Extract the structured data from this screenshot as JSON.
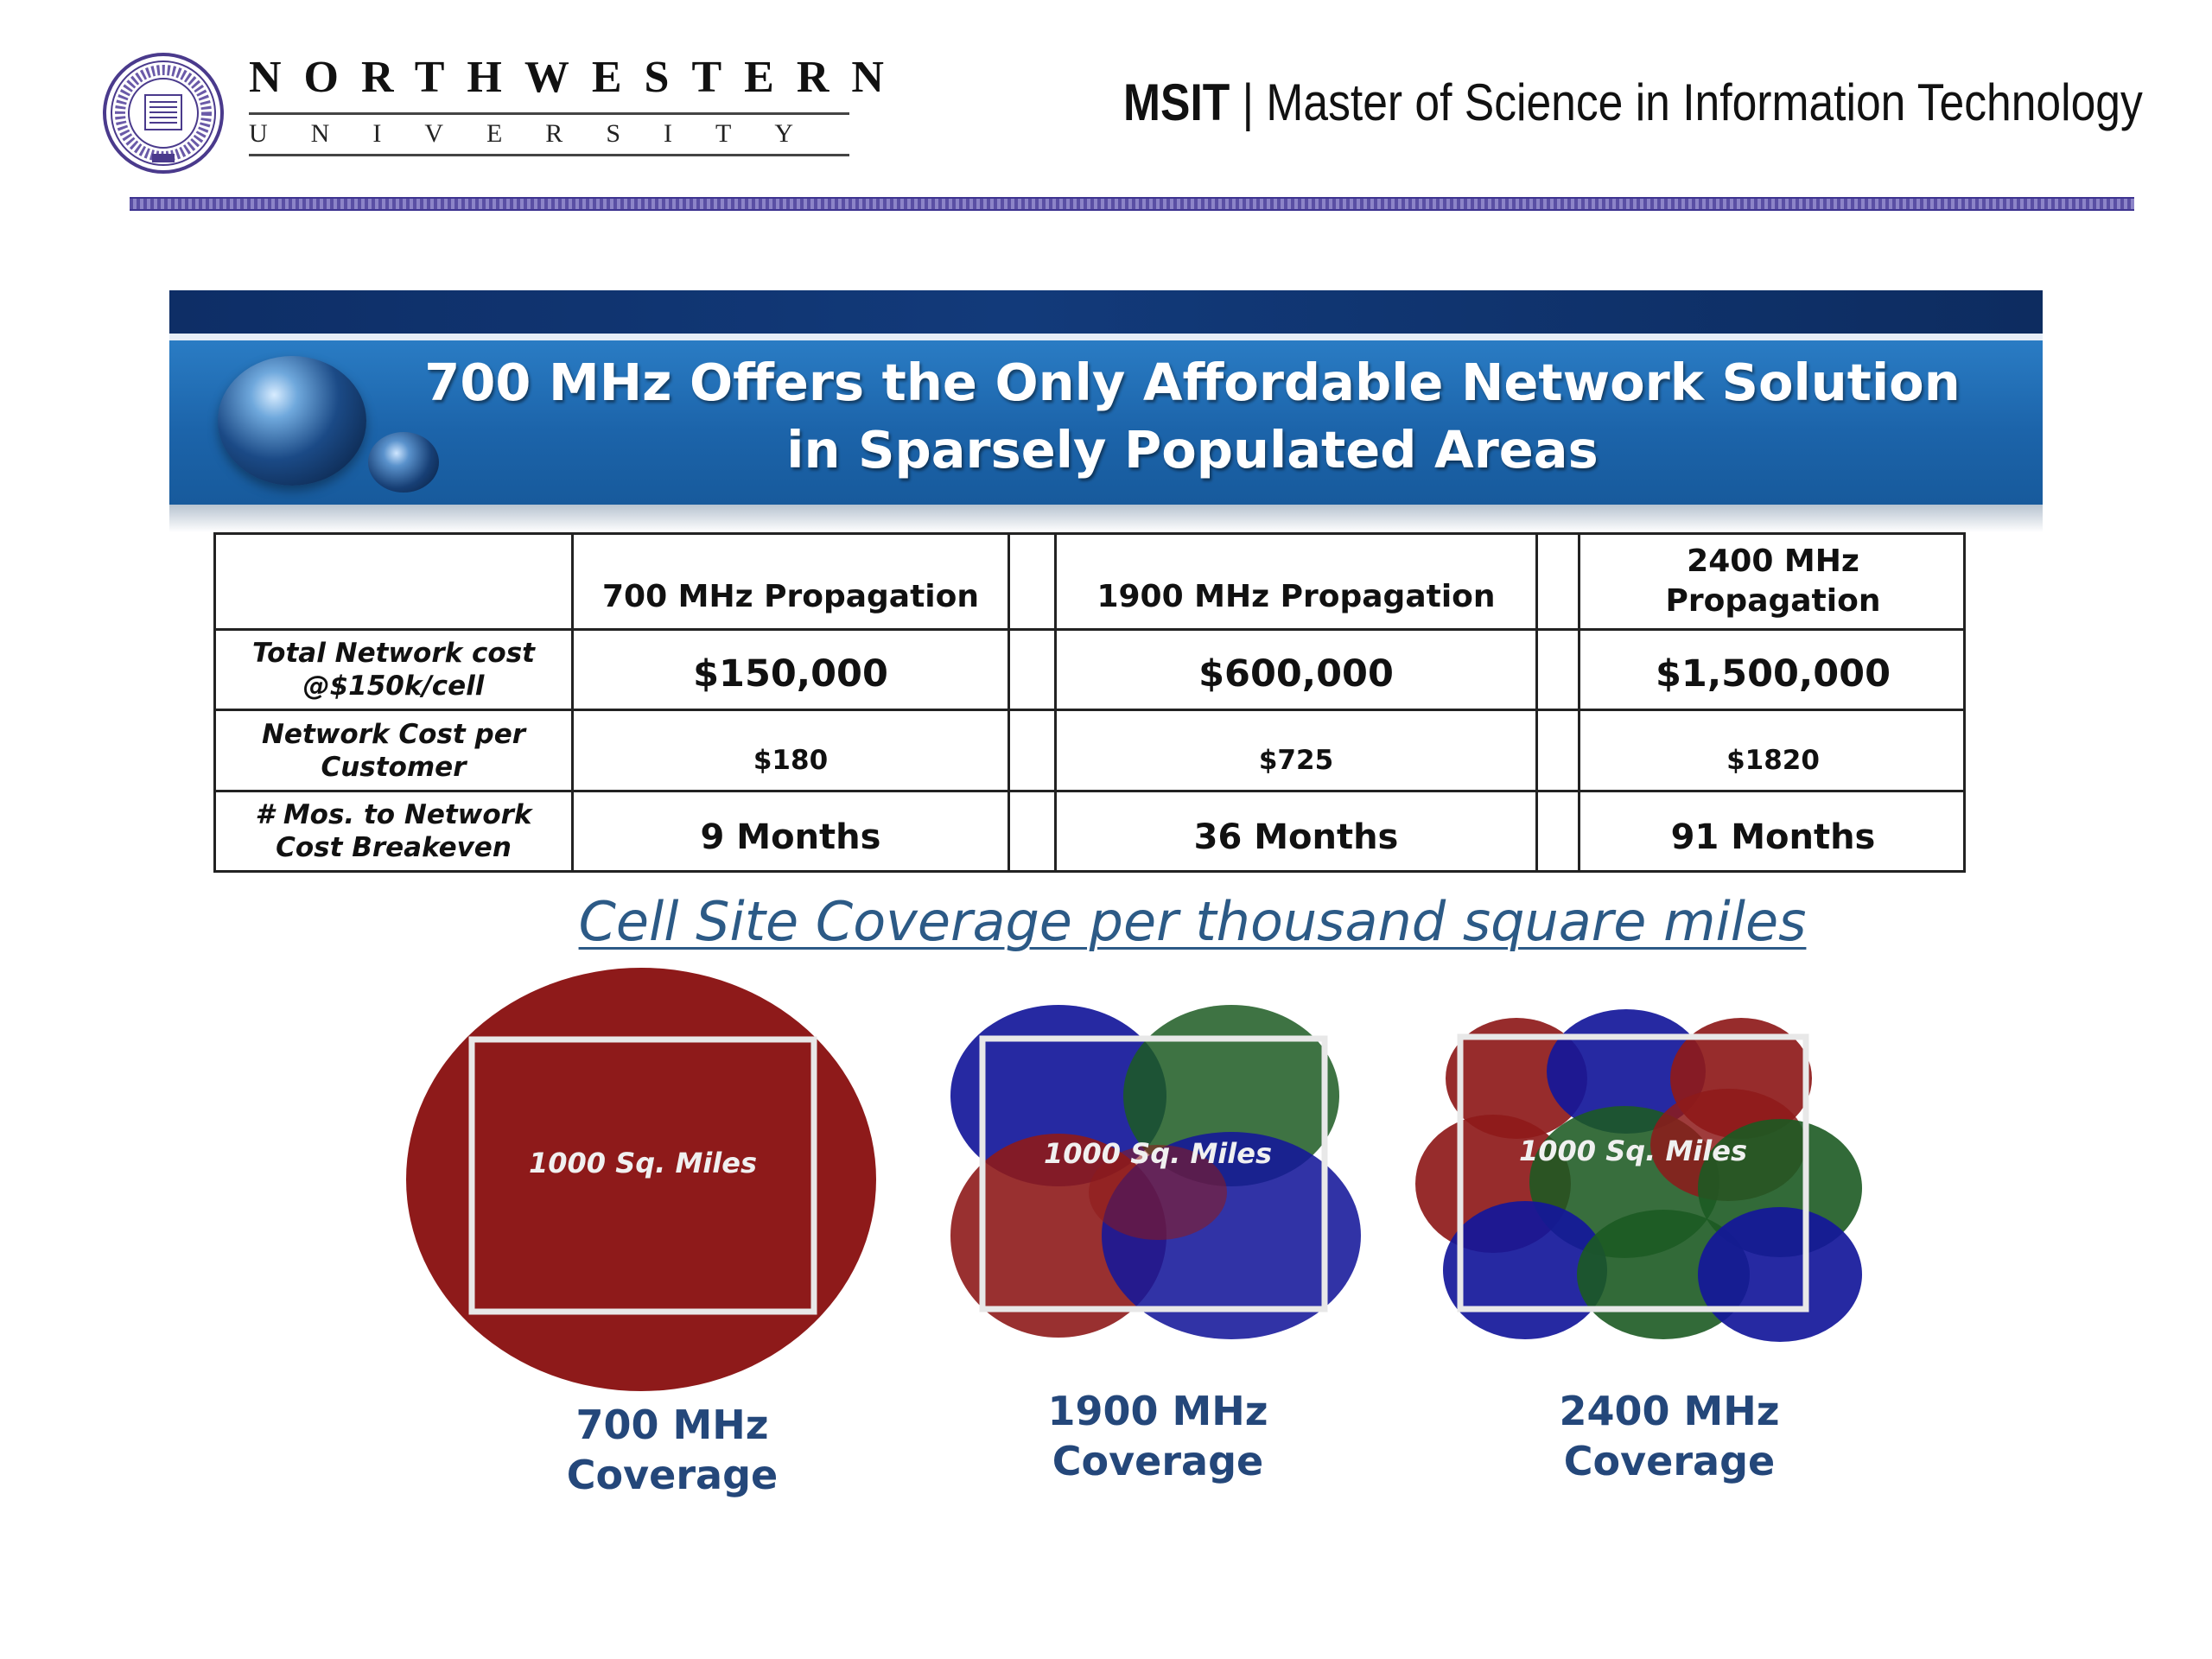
{
  "header": {
    "university_name": "NORTHWESTERN",
    "university_sub": "UNIVERSITY",
    "program_abbrev": "MSIT",
    "program_separator": "|",
    "program_name": "Master of Science in Information Technology"
  },
  "slide": {
    "title_line1": "700 MHz Offers the Only Affordable Network Solution",
    "title_line2": "in Sparsely Populated Areas"
  },
  "table": {
    "columns": [
      "",
      "700 MHz Propagation",
      "1900 MHz Propagation",
      "2400 MHz Propagation"
    ],
    "rows": [
      {
        "label": "Total Network cost @$150k/cell",
        "values": [
          "$150,000",
          "$600,000",
          "$1,500,000"
        ]
      },
      {
        "label": "Network Cost per Customer",
        "values": [
          "$180",
          "$725",
          "$1820"
        ]
      },
      {
        "label": "# Mos. to Network Cost Breakeven",
        "values": [
          "9 Months",
          "36 Months",
          "91 Months"
        ]
      }
    ]
  },
  "coverage": {
    "title": "Cell Site Coverage per thousand square miles",
    "area_label": "1000 Sq. Miles",
    "items": [
      {
        "label_line1": "700 MHz",
        "label_line2": "Coverage",
        "cells": 1
      },
      {
        "label_line1": "1900 MHz",
        "label_line2": "Coverage",
        "cells": 4
      },
      {
        "label_line1": "2400 MHz",
        "label_line2": "Coverage",
        "cells": 10
      }
    ],
    "colors": {
      "red": "#8e1a1a",
      "blue": "#14179a",
      "green": "#1c5a22",
      "frame": "#e8e8e8"
    }
  }
}
